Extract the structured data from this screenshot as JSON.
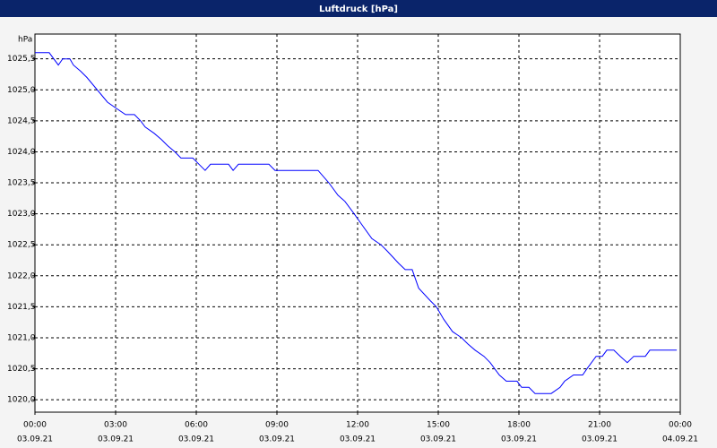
{
  "chart_data": {
    "type": "line",
    "title": "Luftdruck [hPa]",
    "y_label": "hPa",
    "xlim": [
      0,
      24
    ],
    "xticks": [
      {
        "value": 0,
        "label": "00:00"
      },
      {
        "value": 3,
        "label": "03:00"
      },
      {
        "value": 6,
        "label": "06:00"
      },
      {
        "value": 9,
        "label": "09:00"
      },
      {
        "value": 12,
        "label": "12:00"
      },
      {
        "value": 15,
        "label": "15:00"
      },
      {
        "value": 18,
        "label": "18:00"
      },
      {
        "value": 21,
        "label": "21:00"
      },
      {
        "value": 24,
        "label": "00:00"
      }
    ],
    "xtick_dates": [
      "03.09.21",
      "03.09.21",
      "03.09.21",
      "03.09.21",
      "03.09.21",
      "03.09.21",
      "03.09.21",
      "03.09.21",
      "04.09.21"
    ],
    "ylim": [
      1019.8,
      1025.9
    ],
    "yticks": [
      {
        "value": 1020,
        "label": "1020,0"
      },
      {
        "value": 1020.5,
        "label": "1020,5"
      },
      {
        "value": 1021,
        "label": "1021,0"
      },
      {
        "value": 1021.5,
        "label": "1021,5"
      },
      {
        "value": 1022,
        "label": "1022,0"
      },
      {
        "value": 1022.5,
        "label": "1022,5"
      },
      {
        "value": 1023,
        "label": "1023,0"
      },
      {
        "value": 1023.5,
        "label": "1023,5"
      },
      {
        "value": 1024,
        "label": "1024,0"
      },
      {
        "value": 1024.5,
        "label": "1024,5"
      },
      {
        "value": 1025,
        "label": "1025,0"
      },
      {
        "value": 1025.5,
        "label": "1025,5"
      }
    ],
    "grid": true,
    "x": [
      0,
      0.53,
      0.87,
      1.03,
      1.3,
      1.43,
      1.7,
      1.93,
      2.7,
      3.03,
      3.37,
      3.7,
      3.93,
      4.1,
      4.43,
      4.7,
      4.93,
      5.2,
      5.43,
      5.87,
      6.1,
      6.33,
      6.53,
      7.2,
      7.37,
      7.57,
      8.7,
      8.93,
      10.53,
      10.93,
      11.27,
      11.53,
      11.87,
      12.2,
      12.53,
      12.87,
      13.1,
      13.53,
      13.77,
      14.03,
      14.27,
      14.7,
      14.93,
      15.2,
      15.53,
      15.87,
      16.1,
      16.37,
      16.7,
      16.93,
      17.27,
      17.53,
      17.93,
      18.1,
      18.37,
      18.6,
      19.2,
      19.53,
      19.7,
      20.03,
      20.37,
      20.53,
      20.87,
      21.1,
      21.27,
      21.53,
      21.77,
      22.03,
      22.27,
      22.7,
      22.87,
      23.87
    ],
    "series": [
      {
        "color": "#0000ff",
        "values": [
          1025.6,
          1025.6,
          1025.4,
          1025.5,
          1025.5,
          1025.4,
          1025.3,
          1025.2,
          1024.8,
          1024.7,
          1024.6,
          1024.6,
          1024.5,
          1024.4,
          1024.3,
          1024.2,
          1024.1,
          1024.0,
          1023.9,
          1023.9,
          1023.8,
          1023.7,
          1023.8,
          1023.8,
          1023.7,
          1023.8,
          1023.8,
          1023.7,
          1023.7,
          1023.5,
          1023.3,
          1023.2,
          1023.0,
          1022.8,
          1022.6,
          1022.5,
          1022.4,
          1022.2,
          1022.1,
          1022.1,
          1021.8,
          1021.6,
          1021.5,
          1021.3,
          1021.1,
          1021.0,
          1020.9,
          1020.8,
          1020.7,
          1020.6,
          1020.4,
          1020.3,
          1020.3,
          1020.2,
          1020.2,
          1020.1,
          1020.1,
          1020.2,
          1020.3,
          1020.4,
          1020.4,
          1020.5,
          1020.7,
          1020.7,
          1020.8,
          1020.8,
          1020.7,
          1020.6,
          1020.7,
          1020.7,
          1020.8,
          1020.8
        ]
      }
    ]
  }
}
